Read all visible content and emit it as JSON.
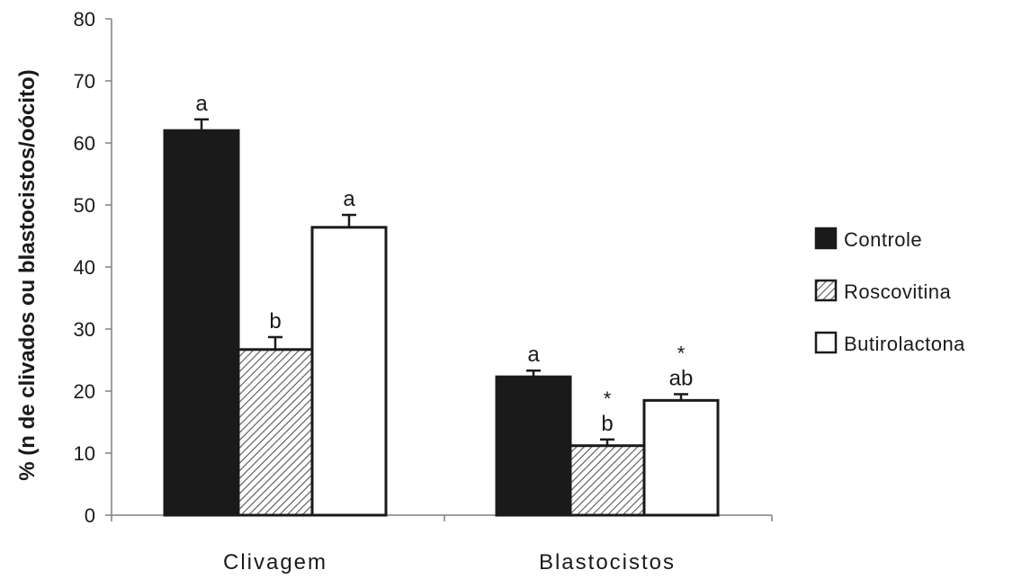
{
  "chart_data": {
    "type": "bar",
    "title": "",
    "xlabel": "",
    "ylabel": "% (n de clivados ou blastocistos/oócito)",
    "ylim": [
      0,
      80
    ],
    "yticks": [
      0,
      10,
      20,
      30,
      40,
      50,
      60,
      70,
      80
    ],
    "categories": [
      "Clivagem",
      "Blastocistos"
    ],
    "legend_position": "right",
    "grid": false,
    "series": [
      {
        "name": "Controle",
        "pattern": "solid",
        "color": "#1a1a1a",
        "values": [
          62,
          22.3
        ],
        "errors": [
          1.8,
          1.0
        ],
        "labels": [
          {
            "text": "a",
            "star": ""
          },
          {
            "text": "a",
            "star": ""
          }
        ]
      },
      {
        "name": "Roscovitina",
        "pattern": "hatched",
        "color": "#555555",
        "values": [
          26.7,
          11.2
        ],
        "errors": [
          2.0,
          1.0
        ],
        "labels": [
          {
            "text": "b",
            "star": ""
          },
          {
            "text": "b",
            "star": "*"
          }
        ]
      },
      {
        "name": "Butirolactona",
        "pattern": "white",
        "color": "#ffffff",
        "values": [
          46.4,
          18.5
        ],
        "errors": [
          2.0,
          1.0
        ],
        "labels": [
          {
            "text": "a",
            "star": ""
          },
          {
            "text": "ab",
            "star": "*"
          }
        ]
      }
    ]
  }
}
